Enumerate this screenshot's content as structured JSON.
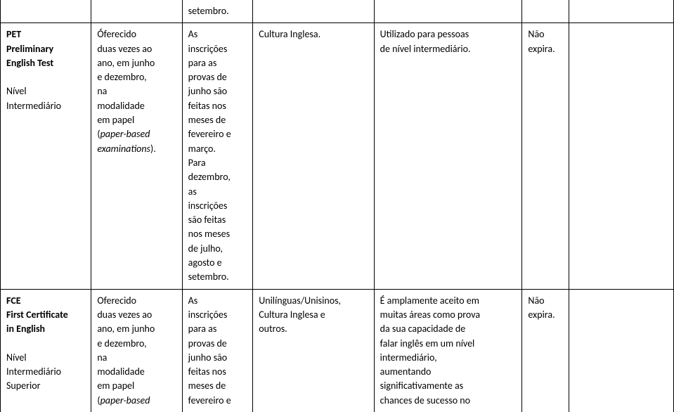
{
  "rows": [
    {
      "c1_lines": [
        {
          "t": "PET",
          "b": true,
          "i": false
        },
        {
          "t": "Preliminary",
          "b": true,
          "i": false
        },
        {
          "t": "English Test",
          "b": true,
          "i": false
        },
        {
          "t": "",
          "b": false,
          "i": false
        },
        {
          "t": "Nível",
          "b": false,
          "i": false
        },
        {
          "t": "Intermediário",
          "b": false,
          "i": false
        }
      ],
      "c2_lines": [
        {
          "t": "Óferecido",
          "b": false,
          "i": false
        },
        {
          "t": "duas vezes ao",
          "b": false,
          "i": false
        },
        {
          "t": "ano, em junho",
          "b": false,
          "i": false
        },
        {
          "t": "e dezembro,",
          "b": false,
          "i": false
        },
        {
          "t": "na",
          "b": false,
          "i": false
        },
        {
          "t": "modalidade",
          "b": false,
          "i": false
        },
        {
          "t": "em papel",
          "b": false,
          "i": false
        },
        {
          "t": "(",
          "b": false,
          "i": false,
          "concat": [
            {
              "t": "paper-based",
              "i": true
            }
          ]
        },
        {
          "t": "examinations",
          "b": false,
          "i": true,
          "concat": [
            {
              "t": ").",
              "i": false
            }
          ]
        }
      ],
      "c3_lines": [
        {
          "t": "As",
          "b": false,
          "i": false
        },
        {
          "t": "inscrições",
          "b": false,
          "i": false
        },
        {
          "t": "para as",
          "b": false,
          "i": false
        },
        {
          "t": "provas de",
          "b": false,
          "i": false
        },
        {
          "t": "junho são",
          "b": false,
          "i": false
        },
        {
          "t": "feitas nos",
          "b": false,
          "i": false
        },
        {
          "t": "meses de",
          "b": false,
          "i": false
        },
        {
          "t": "fevereiro e",
          "b": false,
          "i": false
        },
        {
          "t": "março.",
          "b": false,
          "i": false
        },
        {
          "t": "Para",
          "b": false,
          "i": false
        },
        {
          "t": "dezembro,",
          "b": false,
          "i": false
        },
        {
          "t": "as",
          "b": false,
          "i": false
        },
        {
          "t": "inscrições",
          "b": false,
          "i": false
        },
        {
          "t": "são feitas",
          "b": false,
          "i": false
        },
        {
          "t": "nos meses",
          "b": false,
          "i": false
        },
        {
          "t": "de julho,",
          "b": false,
          "i": false
        },
        {
          "t": "agosto e",
          "b": false,
          "i": false
        },
        {
          "t": "setembro.",
          "b": false,
          "i": false
        }
      ],
      "c4_lines": [
        {
          "t": "Cultura Inglesa.",
          "b": false,
          "i": false
        }
      ],
      "c5_lines": [
        {
          "t": "Utilizado para pessoas",
          "b": false,
          "i": false
        },
        {
          "t": "de nível intermediário.",
          "b": false,
          "i": false
        }
      ],
      "c6_lines": [
        {
          "t": "Não",
          "b": false,
          "i": false
        },
        {
          "t": "expira.",
          "b": false,
          "i": false
        }
      ],
      "c7_lines": []
    },
    {
      "c1_lines": [
        {
          "t": "FCE",
          "b": true,
          "i": false
        },
        {
          "t": "First Certificate",
          "b": true,
          "i": false
        },
        {
          "t": "in English",
          "b": true,
          "i": false
        },
        {
          "t": "",
          "b": false,
          "i": false
        },
        {
          "t": "Nível",
          "b": false,
          "i": false
        },
        {
          "t": "Intermediário",
          "b": false,
          "i": false
        },
        {
          "t": "Superior",
          "b": false,
          "i": false
        }
      ],
      "c2_lines": [
        {
          "t": "Oferecido",
          "b": false,
          "i": false
        },
        {
          "t": "duas vezes ao",
          "b": false,
          "i": false
        },
        {
          "t": "ano, em junho",
          "b": false,
          "i": false
        },
        {
          "t": "e dezembro,",
          "b": false,
          "i": false
        },
        {
          "t": "na",
          "b": false,
          "i": false
        },
        {
          "t": "modalidade",
          "b": false,
          "i": false
        },
        {
          "t": "em papel",
          "b": false,
          "i": false
        },
        {
          "t": "(",
          "b": false,
          "i": false,
          "concat": [
            {
              "t": "paper-based",
              "i": true
            }
          ]
        }
      ],
      "c3_lines": [
        {
          "t": "As",
          "b": false,
          "i": false
        },
        {
          "t": "inscrições",
          "b": false,
          "i": false
        },
        {
          "t": "para as",
          "b": false,
          "i": false
        },
        {
          "t": "provas de",
          "b": false,
          "i": false
        },
        {
          "t": "junho são",
          "b": false,
          "i": false
        },
        {
          "t": "feitas nos",
          "b": false,
          "i": false
        },
        {
          "t": "meses de",
          "b": false,
          "i": false
        },
        {
          "t": "fevereiro e",
          "b": false,
          "i": false
        }
      ],
      "c4_lines": [
        {
          "t": "Unilínguas/Unisinos,",
          "b": false,
          "i": false
        },
        {
          "t": "Cultura Inglesa e",
          "b": false,
          "i": false
        },
        {
          "t": "outros.",
          "b": false,
          "i": false
        }
      ],
      "c5_lines": [
        {
          "t": "É amplamente aceito em",
          "b": false,
          "i": false
        },
        {
          "t": "muitas áreas como prova",
          "b": false,
          "i": false
        },
        {
          "t": "da sua capacidade de",
          "b": false,
          "i": false
        },
        {
          "t": "falar inglês em um nível",
          "b": false,
          "i": false
        },
        {
          "t": "intermediário,",
          "b": false,
          "i": false
        },
        {
          "t": "aumentando",
          "b": false,
          "i": false
        },
        {
          "t": "significativamente as",
          "b": false,
          "i": false
        },
        {
          "t": "chances de sucesso no",
          "b": false,
          "i": false
        }
      ],
      "c6_lines": [
        {
          "t": "Não",
          "b": false,
          "i": false
        },
        {
          "t": "expira.",
          "b": false,
          "i": false
        }
      ],
      "c7_lines": []
    }
  ],
  "header_frag": "setembro."
}
